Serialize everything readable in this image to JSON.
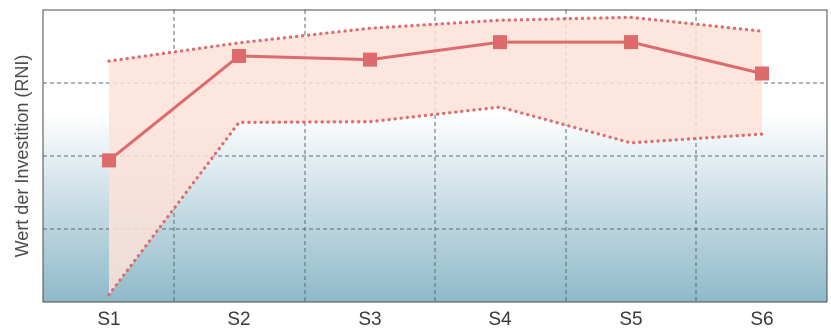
{
  "chart_data": {
    "type": "line",
    "title": "",
    "xlabel": "",
    "ylabel": "Wert der Investition (RNI)",
    "categories": [
      "S1",
      "S2",
      "S3",
      "S4",
      "S5",
      "S6"
    ],
    "ylim": [
      0,
      4
    ],
    "y_tick_labels_shown": false,
    "grid": true,
    "series": [
      {
        "role": "main",
        "values": [
          1.94,
          3.37,
          3.32,
          3.56,
          3.56,
          3.13
        ]
      },
      {
        "role": "upper-band",
        "values": [
          3.3,
          3.55,
          3.75,
          3.86,
          3.9,
          3.71
        ]
      },
      {
        "role": "lower-band",
        "values": [
          0.1,
          2.46,
          2.47,
          2.67,
          2.18,
          2.3
        ]
      }
    ],
    "colors": {
      "line": "#dd6b6b",
      "band_fill": "#fde2d8",
      "bg_top": "#ffffff",
      "bg_bottom": "#8fb9c9",
      "grid": "#5a6a78"
    }
  }
}
